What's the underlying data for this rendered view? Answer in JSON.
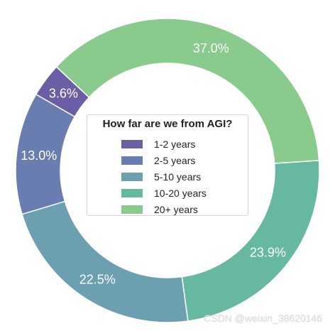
{
  "chart_data": {
    "type": "pie",
    "donut": true,
    "title": "",
    "legend": {
      "title": "How far are we from AGI?",
      "placement": "center"
    },
    "categories": [
      "1-2 years",
      "2-5 years",
      "5-10 years",
      "10-20 years",
      "20+ years"
    ],
    "values": [
      3.6,
      13.0,
      22.5,
      23.9,
      37.0
    ],
    "labels": [
      "3.6%",
      "13.0%",
      "22.5%",
      "23.9%",
      "37.0%"
    ],
    "colors": [
      "#6c5ea5",
      "#6a7db0",
      "#6c9fb0",
      "#66b9a0",
      "#88cb8c"
    ]
  },
  "watermark": "CSDN @weixin_38620146"
}
